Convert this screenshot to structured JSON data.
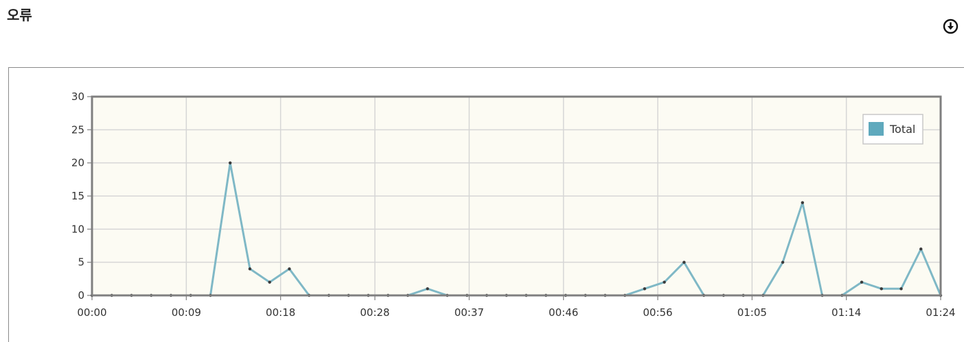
{
  "page": {
    "title": "오류"
  },
  "icons": {
    "download": "download-circle-icon"
  },
  "colors": {
    "plot_background": "#fcfbf3",
    "series_line": "#7fb8c6",
    "legend_swatch": "#5fa9bd",
    "grid": "#d6d6d6",
    "axis": "#7f7f7f"
  },
  "chart_data": {
    "type": "line",
    "title": "",
    "xlabel": "",
    "ylabel": "",
    "ylim": [
      0,
      30
    ],
    "yticks": [
      0,
      5,
      10,
      15,
      20,
      25,
      30
    ],
    "xlim": [
      "00:00",
      "01:24"
    ],
    "xticks": [
      "00:00",
      "00:09",
      "00:18",
      "00:28",
      "00:37",
      "00:46",
      "00:56",
      "01:05",
      "01:14",
      "01:24"
    ],
    "grid": true,
    "legend_position": "top-right",
    "series": [
      {
        "name": "Total",
        "values": [
          0,
          0,
          0,
          0,
          0,
          0,
          0,
          20,
          4,
          2,
          4,
          0,
          0,
          0,
          0,
          0,
          0,
          1,
          0,
          0,
          0,
          0,
          0,
          0,
          0,
          0,
          0,
          0,
          1,
          2,
          5,
          0,
          0,
          0,
          0,
          5,
          14,
          0,
          0,
          2,
          1,
          1,
          7,
          0
        ]
      }
    ]
  }
}
